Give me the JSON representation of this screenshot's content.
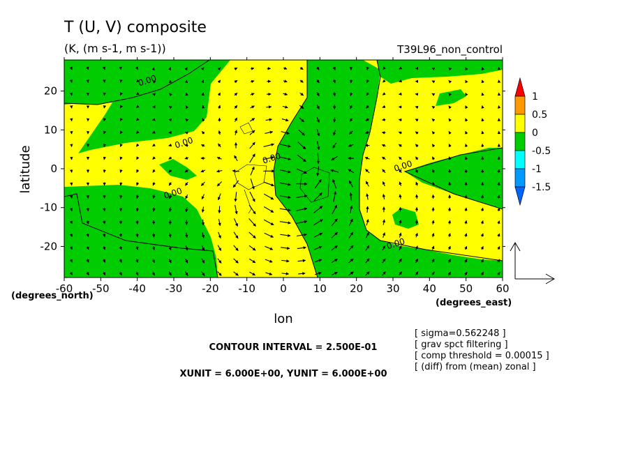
{
  "title": "T (U, V) composite",
  "units": "(K, (m s-1, m s-1))",
  "experiment": "T39L96_non_control",
  "colors": {
    "yellow": "#ffff00",
    "green": "#00cc00",
    "orange": "#ff9900",
    "red": "#ff0000",
    "cyan": "#00ffff",
    "blue": "#0099ff",
    "deep_blue": "#0066ff"
  },
  "chart_data": {
    "type": "contour",
    "xlabel": "lon",
    "ylabel": "latitude",
    "x_unit_label": "(degrees_east)",
    "y_unit_label": "(degrees_north)",
    "xlim": [
      -60,
      60
    ],
    "ylim": [
      -28,
      28
    ],
    "x_ticks": [
      -60,
      -50,
      -40,
      -30,
      -20,
      -10,
      0,
      10,
      20,
      30,
      40,
      50,
      60
    ],
    "y_ticks": [
      -20,
      -10,
      0,
      10,
      20
    ],
    "x_tick_labels": [
      "-60",
      "-50",
      "-40",
      "-30",
      "-20",
      "-10",
      "0",
      "10",
      "20",
      "30",
      "40",
      "50",
      "60"
    ],
    "y_tick_labels": [
      "-20",
      "-10",
      "0",
      "10",
      "20"
    ],
    "contour_level_label": "0.00",
    "contour_label_positions": [
      {
        "lon": -37,
        "lat": 22
      },
      {
        "lon": -27,
        "lat": 6
      },
      {
        "lon": -30,
        "lat": -7
      },
      {
        "lon": -3,
        "lat": 2
      },
      {
        "lon": 33,
        "lat": 0
      },
      {
        "lon": 31,
        "lat": -20
      }
    ],
    "colorbar": {
      "labels": [
        "1",
        "0.5",
        "0",
        "-0.5",
        "-1",
        "-1.5"
      ],
      "segments": [
        {
          "range": "above 1",
          "color": "#ff0000"
        },
        {
          "range": "0.5 to 1",
          "color": "#ff9900"
        },
        {
          "range": "0 to 0.5",
          "color": "#ffff00"
        },
        {
          "range": "-0.5 to 0",
          "color": "#00cc00"
        },
        {
          "range": "-1 to -0.5",
          "color": "#00ffff"
        },
        {
          "range": "-1.5 to -1",
          "color": "#0099ff"
        },
        {
          "range": "below -1.5",
          "color": "#0066ff"
        }
      ]
    },
    "contour_interval_text": "CONTOUR INTERVAL = 2.500E-01",
    "vector_unit_text": "XUNIT = 6.000E+00, YUNIT = 6.000E+00",
    "notes": [
      "[ sigma=0.562248 ]",
      "[ grav spct filtering ]",
      "[ comp threshold = 0.00015 ]",
      "[ (diff) from (mean) zonal ]"
    ]
  }
}
